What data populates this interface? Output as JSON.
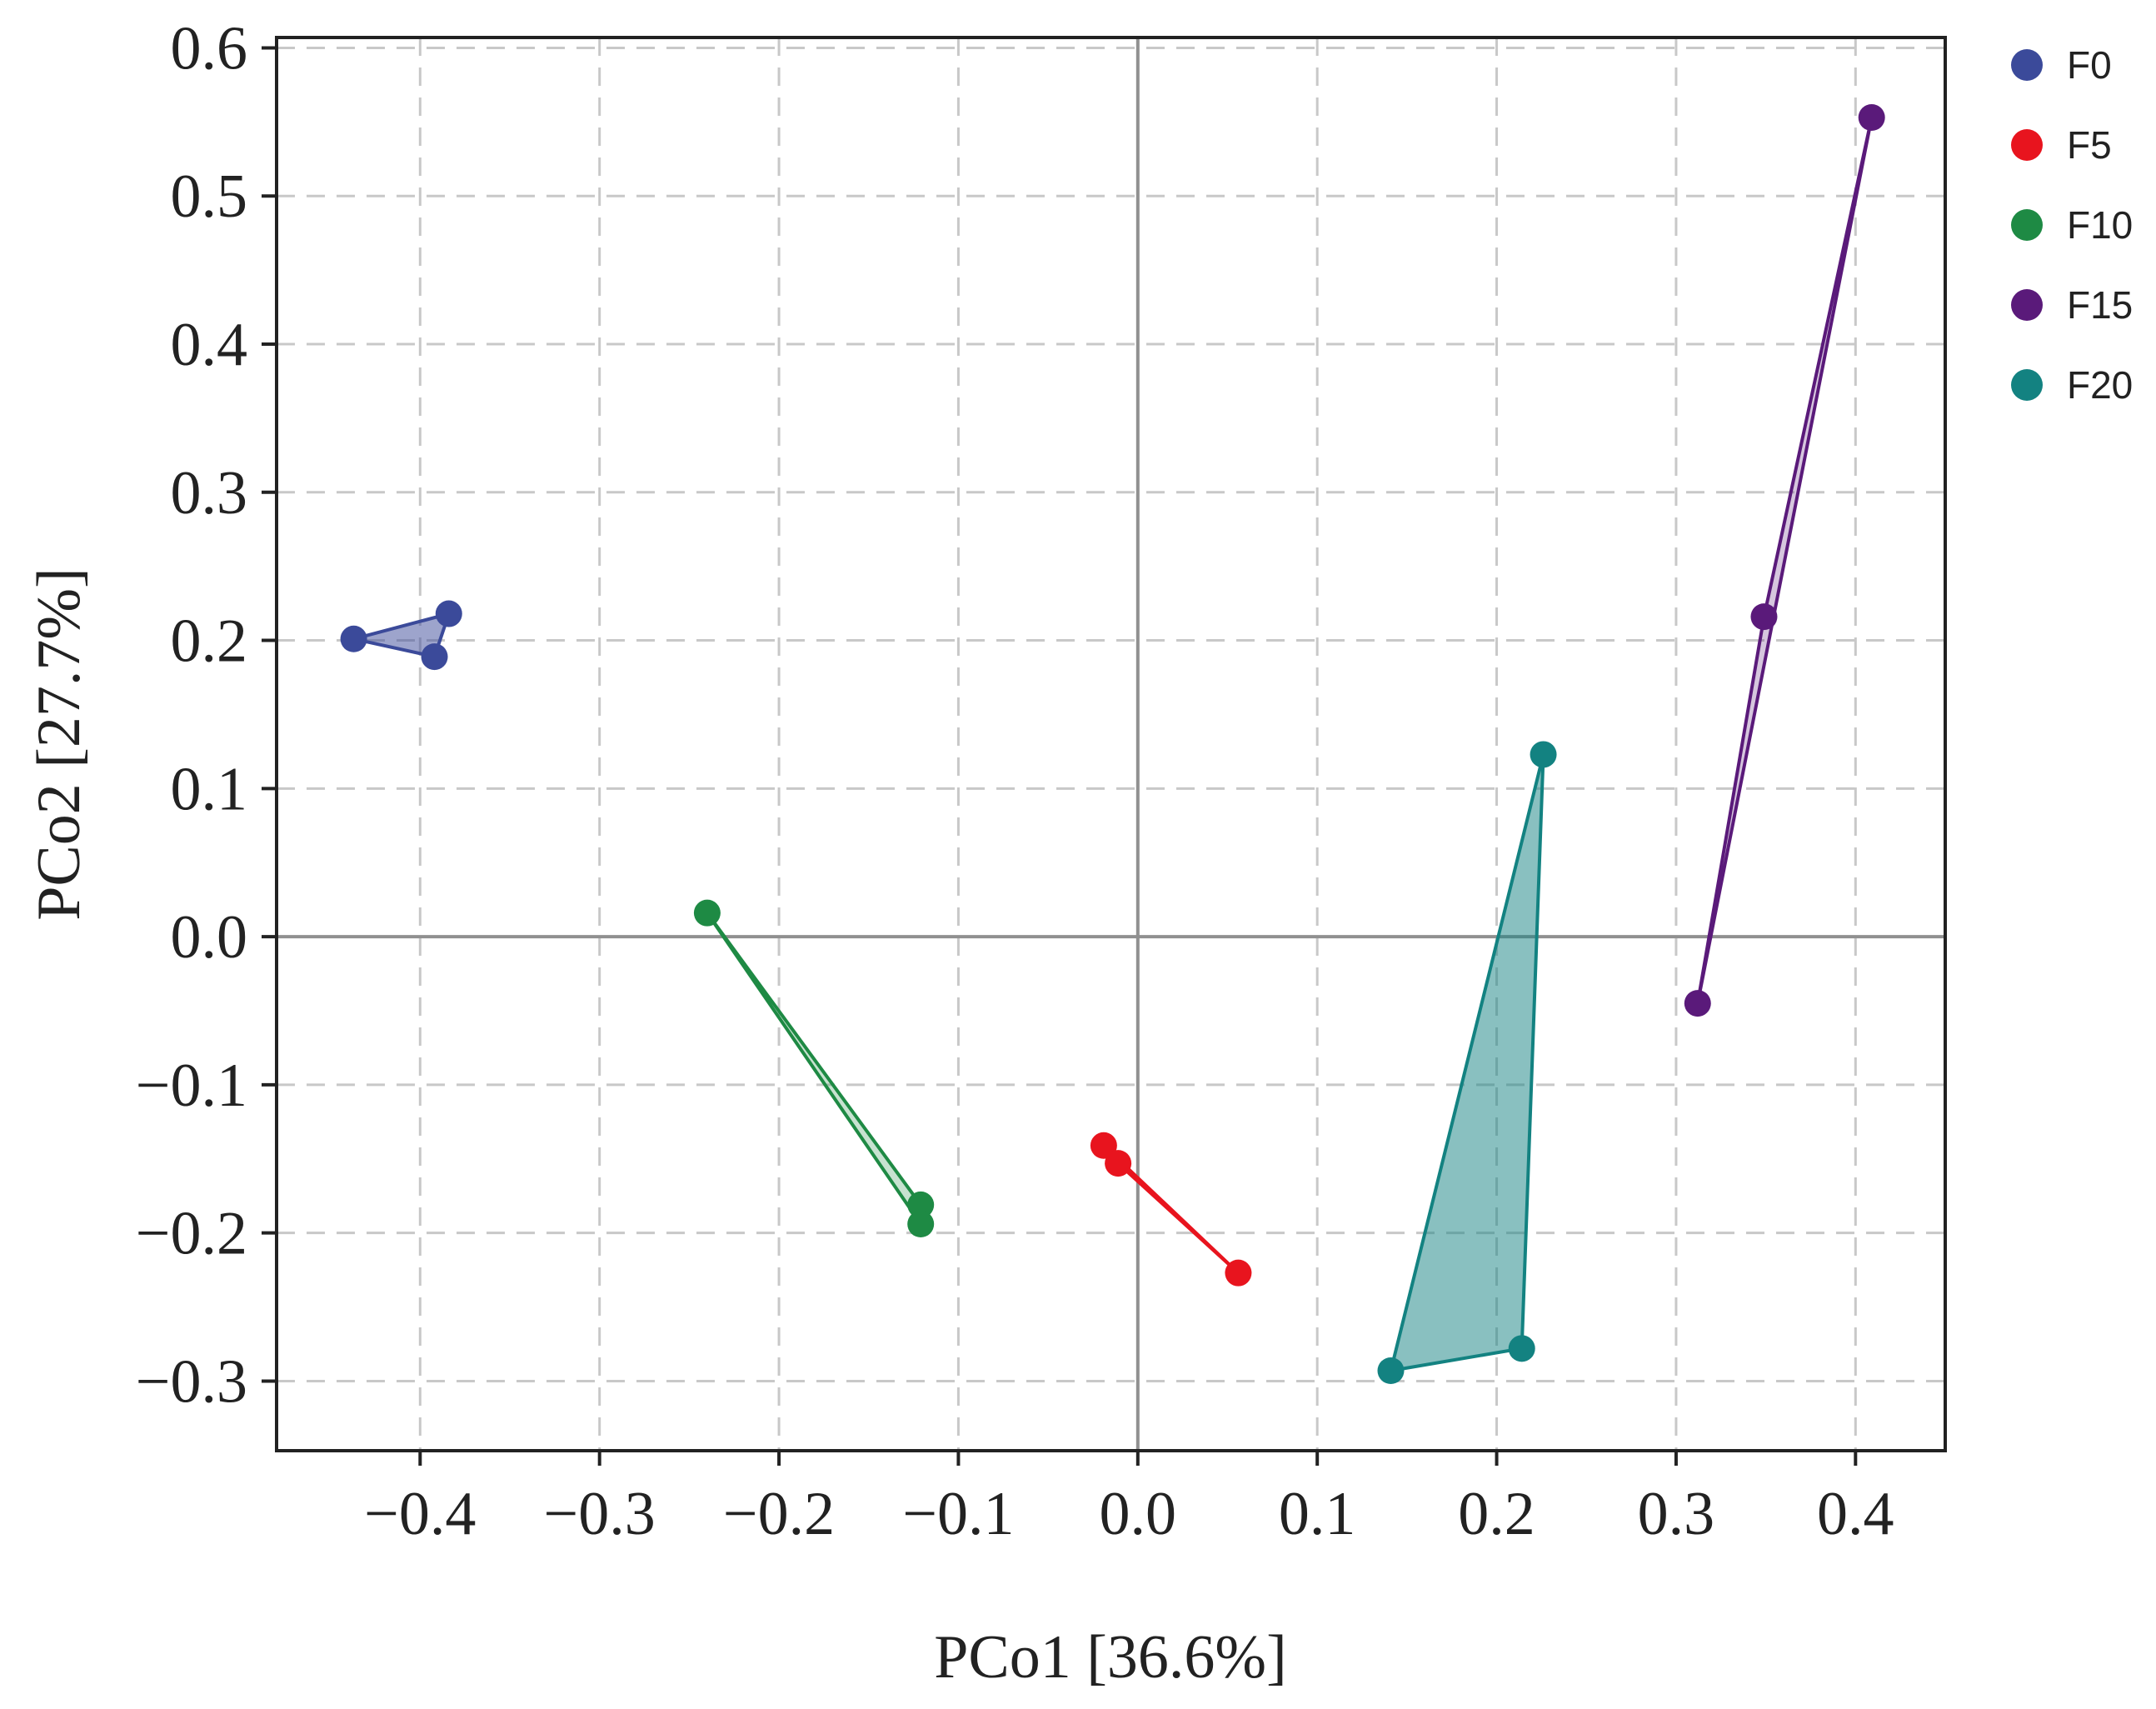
{
  "chart_data": {
    "type": "scatter",
    "xlabel": "PCo1 [36.6%]",
    "ylabel": "PCo2 [27.7%]",
    "xlim": [
      -0.48,
      0.45
    ],
    "ylim": [
      -0.347,
      0.607
    ],
    "x_ticks": [
      -0.4,
      -0.3,
      -0.2,
      -0.1,
      0.0,
      0.1,
      0.2,
      0.3,
      0.4
    ],
    "y_ticks": [
      -0.3,
      -0.2,
      -0.1,
      0.0,
      0.1,
      0.2,
      0.3,
      0.4,
      0.5,
      0.6
    ],
    "x_tick_labels": [
      "−0.4",
      "−0.3",
      "−0.2",
      "−0.1",
      "0.0",
      "0.1",
      "0.2",
      "0.3",
      "0.4"
    ],
    "y_tick_labels": [
      "−0.3",
      "−0.2",
      "−0.1",
      "0.0",
      "0.1",
      "0.2",
      "0.3",
      "0.4",
      "0.5",
      "0.6"
    ],
    "grid": true,
    "zero_lines": true,
    "legend_position": "right",
    "series": [
      {
        "name": "F0",
        "color": "#3B4A9A",
        "hull_filled": true,
        "points": [
          {
            "x": -0.437,
            "y": 0.201
          },
          {
            "x": -0.384,
            "y": 0.218
          },
          {
            "x": -0.392,
            "y": 0.189
          }
        ]
      },
      {
        "name": "F5",
        "color": "#E8141E",
        "hull_filled": false,
        "points": [
          {
            "x": -0.019,
            "y": -0.141
          },
          {
            "x": -0.011,
            "y": -0.153
          },
          {
            "x": 0.056,
            "y": -0.227
          }
        ]
      },
      {
        "name": "F10",
        "color": "#1E8A44",
        "hull_filled": false,
        "points": [
          {
            "x": -0.24,
            "y": 0.016
          },
          {
            "x": -0.121,
            "y": -0.181
          },
          {
            "x": -0.121,
            "y": -0.194
          }
        ]
      },
      {
        "name": "F15",
        "color": "#5A1A7A",
        "hull_filled": false,
        "points": [
          {
            "x": 0.409,
            "y": 0.553
          },
          {
            "x": 0.349,
            "y": 0.216
          },
          {
            "x": 0.312,
            "y": -0.045
          }
        ]
      },
      {
        "name": "F20",
        "color": "#138281",
        "hull_filled": true,
        "points": [
          {
            "x": 0.226,
            "y": 0.123
          },
          {
            "x": 0.214,
            "y": -0.278
          },
          {
            "x": 0.141,
            "y": -0.293
          }
        ]
      }
    ]
  }
}
